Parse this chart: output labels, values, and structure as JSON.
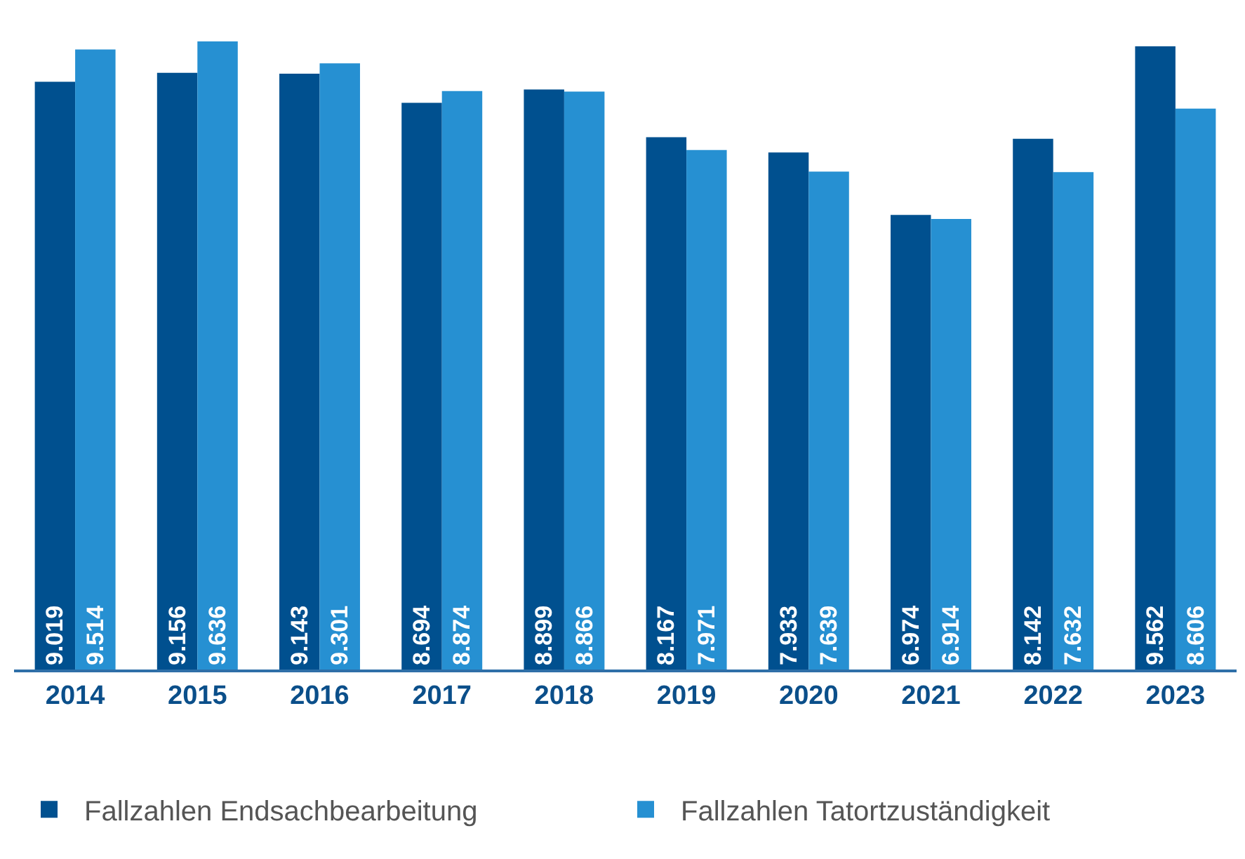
{
  "chart_data": {
    "type": "bar",
    "categories": [
      "2014",
      "2015",
      "2016",
      "2017",
      "2018",
      "2019",
      "2020",
      "2021",
      "2022",
      "2023"
    ],
    "series": [
      {
        "name": "Fallzahlen Endsachbearbeitung",
        "color": "#00508f",
        "values": [
          9019,
          9156,
          9143,
          8694,
          8899,
          8167,
          7933,
          6974,
          8142,
          9562
        ],
        "value_labels": [
          "9.019",
          "9.156",
          "9.143",
          "8.694",
          "8.899",
          "8.167",
          "7.933",
          "6.974",
          "8.142",
          "9.562"
        ]
      },
      {
        "name": "Fallzahlen Tatortzuständigkeit",
        "color": "#2690d2",
        "values": [
          9514,
          9636,
          9301,
          8874,
          8866,
          7971,
          7639,
          6914,
          7632,
          8606
        ],
        "value_labels": [
          "9.514",
          "9.636",
          "9.301",
          "8.874",
          "8.866",
          "7.971",
          "7.639",
          "6.914",
          "7.632",
          "8.606"
        ]
      }
    ],
    "legend": "bottom left",
    "grid": false
  }
}
